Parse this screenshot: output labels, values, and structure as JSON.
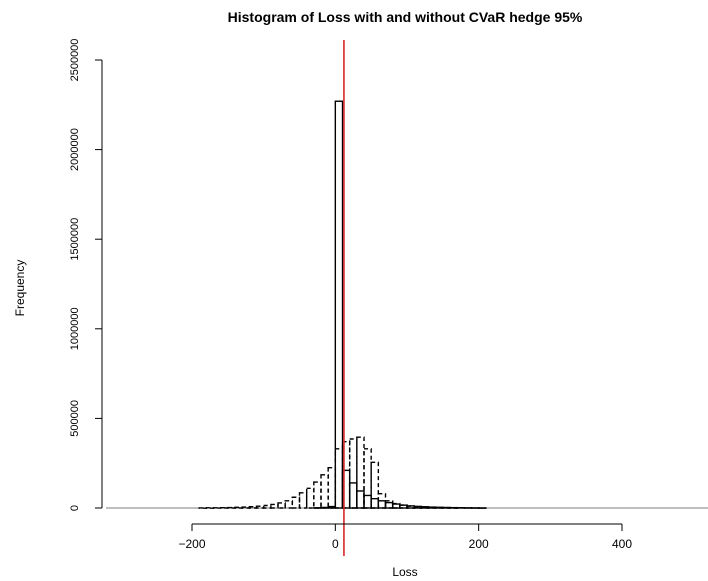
{
  "chart_data": {
    "type": "bar",
    "title": "Histogram of Loss with and without CVaR hedge 95%",
    "xlabel": "Loss",
    "ylabel": "Frequency",
    "xlim": [
      -320,
      520
    ],
    "ylim": [
      0,
      2500000
    ],
    "x_ticks": [
      -200,
      0,
      200,
      400
    ],
    "x_tick_labels": [
      "−200",
      "0",
      "200",
      "400"
    ],
    "y_ticks": [
      0,
      500000,
      1000000,
      1500000,
      2000000,
      2500000
    ],
    "y_tick_labels": [
      "0",
      "500000",
      "1000000",
      "1500000",
      "2000000",
      "2500000"
    ],
    "bin_width": 10,
    "vline": {
      "x": 12,
      "color": "#d62728"
    },
    "series": [
      {
        "style": "solid",
        "bin_starts": [
          -30,
          -20,
          -10,
          0,
          10,
          20,
          30,
          40,
          50,
          60,
          70,
          80,
          90,
          100,
          110,
          120,
          130,
          140,
          150,
          160,
          170,
          180,
          190,
          200
        ],
        "values": [
          1000,
          3000,
          8000,
          2270000,
          210000,
          140000,
          95000,
          70000,
          52000,
          40000,
          30000,
          22000,
          16000,
          12000,
          9000,
          7000,
          5000,
          4000,
          3000,
          2000,
          1500,
          1000,
          800,
          500
        ]
      },
      {
        "style": "dashed",
        "bin_starts": [
          -190,
          -180,
          -170,
          -160,
          -150,
          -140,
          -130,
          -120,
          -110,
          -100,
          -90,
          -80,
          -70,
          -60,
          -50,
          -40,
          -30,
          -20,
          -10,
          0,
          10,
          20,
          30,
          40,
          50,
          60,
          70,
          80,
          90,
          100,
          110,
          120,
          130,
          140,
          150,
          160
        ],
        "values": [
          500,
          800,
          1200,
          1800,
          2500,
          3500,
          5000,
          7000,
          10000,
          14000,
          20000,
          28000,
          40000,
          60000,
          85000,
          110000,
          145000,
          185000,
          225000,
          330000,
          370000,
          385000,
          395000,
          330000,
          255000,
          80000,
          40000,
          25000,
          16000,
          10000,
          7000,
          4500,
          3000,
          2000,
          1200,
          800
        ]
      }
    ]
  }
}
